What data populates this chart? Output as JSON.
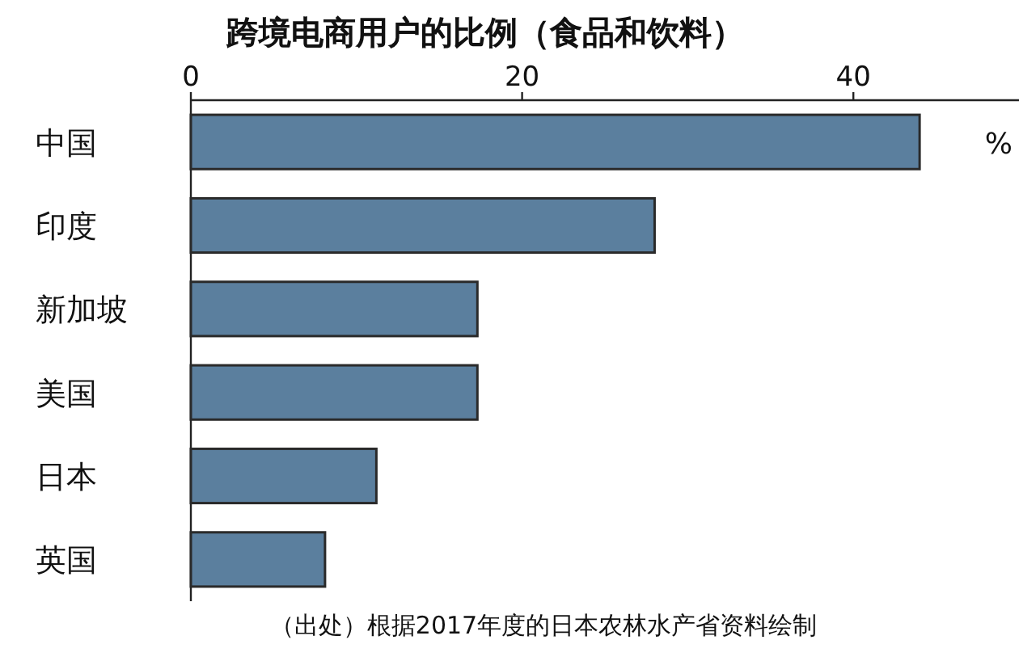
{
  "chart_data": {
    "type": "bar",
    "orientation": "horizontal",
    "title": "跨境电商用户的比例（食品和饮料）",
    "categories": [
      "中国",
      "印度",
      "新加坡",
      "美国",
      "日本",
      "英国"
    ],
    "values": [
      44,
      28,
      17.3,
      17.3,
      11.2,
      8.1
    ],
    "color": "#5b7f9e",
    "xlim": [
      0,
      50
    ],
    "xticks": [
      0,
      20,
      40
    ],
    "annotations": [
      "%",
      "（出处）根据2017年度的日本农林水产省资料绘制"
    ]
  }
}
